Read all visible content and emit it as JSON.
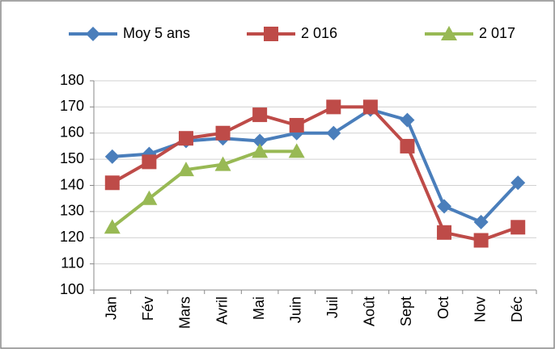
{
  "chart_data": {
    "type": "line",
    "categories": [
      "Jan",
      "Fév",
      "Mars",
      "Avril",
      "Mai",
      "Juin",
      "Juil",
      "Août",
      "Sept",
      "Oct",
      "Nov",
      "Déc"
    ],
    "series": [
      {
        "name": "Moy 5 ans",
        "color": "#4a7ebb",
        "marker": "diamond",
        "values": [
          151,
          152,
          157,
          158,
          157,
          160,
          160,
          169,
          165,
          132,
          126,
          141
        ]
      },
      {
        "name": "2 016",
        "color": "#be4b48",
        "marker": "square",
        "values": [
          141,
          149,
          158,
          160,
          167,
          163,
          170,
          170,
          155,
          122,
          119,
          124
        ]
      },
      {
        "name": "2 017",
        "color": "#98b954",
        "marker": "triangle",
        "values": [
          124,
          135,
          146,
          148,
          153,
          153,
          null,
          null,
          null,
          null,
          null,
          null
        ]
      }
    ],
    "ylim": [
      100,
      180
    ],
    "yticks": [
      100,
      110,
      120,
      130,
      140,
      150,
      160,
      170,
      180
    ],
    "grid": true,
    "legend": "top"
  }
}
